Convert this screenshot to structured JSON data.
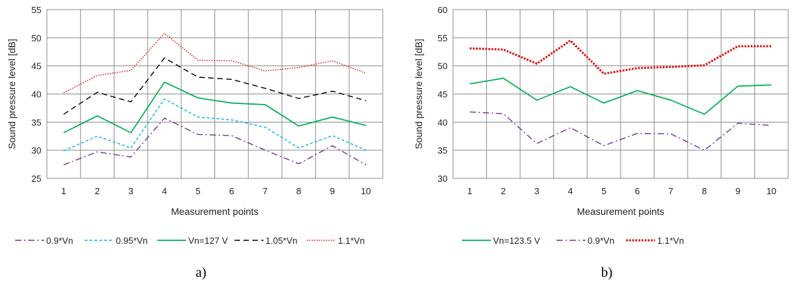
{
  "chart_data": [
    {
      "type": "line",
      "panel_label": "a)",
      "title": "",
      "xlabel": "Measurement points",
      "ylabel": "Sound pressure level [dB]",
      "ylim": [
        25,
        55
      ],
      "yticks": [
        25,
        30,
        35,
        40,
        45,
        50,
        55
      ],
      "grid": true,
      "legend_position": "bottom",
      "categories": [
        "1",
        "2",
        "3",
        "4",
        "5",
        "6",
        "7",
        "8",
        "9",
        "10"
      ],
      "series": [
        {
          "name": "0.9*Vn",
          "color": "#7030a0",
          "dash": "dash-dot",
          "values": [
            27.4,
            29.7,
            28.8,
            35.7,
            32.8,
            32.6,
            30.0,
            27.6,
            30.8,
            27.4
          ]
        },
        {
          "name": "0.95*Vn",
          "color": "#00b0f0",
          "dash": "dash",
          "values": [
            29.9,
            32.5,
            30.4,
            39.1,
            35.9,
            35.4,
            34.1,
            30.4,
            32.6,
            30.0
          ]
        },
        {
          "name": "Vn=127 V",
          "color": "#00b050",
          "dash": "solid",
          "values": [
            33.1,
            36.1,
            33.1,
            42.1,
            39.3,
            38.4,
            38.1,
            34.3,
            35.9,
            34.4
          ]
        },
        {
          "name": "1.05*Vn",
          "color": "#000000",
          "dash": "long-dash",
          "values": [
            36.4,
            40.3,
            38.6,
            46.4,
            43.0,
            42.6,
            41.0,
            39.2,
            40.5,
            38.8
          ]
        },
        {
          "name": "1.1*Vn",
          "color": "#e00000",
          "dash": "dot",
          "values": [
            40.2,
            43.3,
            44.2,
            50.8,
            46.0,
            45.9,
            44.1,
            44.7,
            45.9,
            43.7
          ]
        }
      ]
    },
    {
      "type": "line",
      "panel_label": "b)",
      "title": "",
      "xlabel": "Measurement points",
      "ylabel": "Sound pressure level [dB]",
      "ylim": [
        30,
        60
      ],
      "yticks": [
        30,
        35,
        40,
        45,
        50,
        55,
        60
      ],
      "grid": true,
      "legend_position": "bottom",
      "categories": [
        "1",
        "2",
        "3",
        "4",
        "5",
        "6",
        "7",
        "8",
        "9",
        "10"
      ],
      "series": [
        {
          "name": "Vn=123.5 V",
          "color": "#00b050",
          "dash": "solid",
          "values": [
            46.8,
            47.8,
            43.9,
            46.3,
            43.4,
            45.6,
            43.9,
            41.4,
            46.4,
            46.6
          ]
        },
        {
          "name": "0.9*Vn",
          "color": "#7030a0",
          "dash": "dash-dot",
          "values": [
            41.8,
            41.5,
            36.2,
            39.0,
            35.8,
            38.0,
            37.9,
            35.0,
            39.8,
            39.4
          ]
        },
        {
          "name": "1.1*Vn",
          "color": "#e00000",
          "dash": "bold-dot",
          "values": [
            53.1,
            52.9,
            50.4,
            54.5,
            48.6,
            49.6,
            49.8,
            50.1,
            53.5,
            53.5
          ]
        }
      ]
    }
  ]
}
